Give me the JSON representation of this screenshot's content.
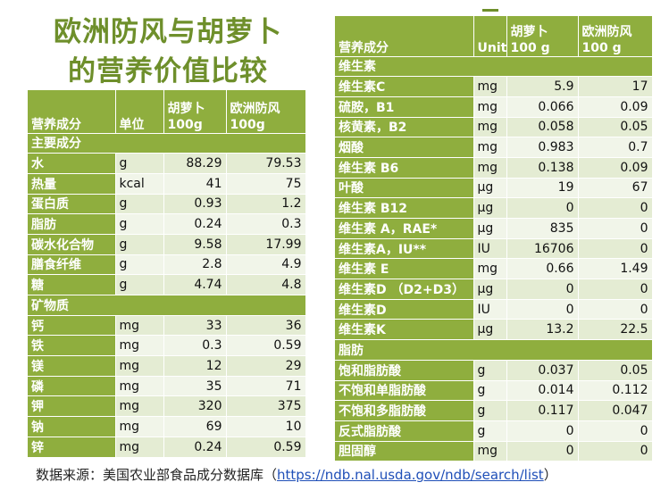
{
  "title_line1": "欧洲防风与胡萝卜",
  "title_line2": "的营养价值比较",
  "left": {
    "headers": [
      "营养成分",
      "单位",
      "胡萝卜\n100g",
      "欧洲防风\n100g"
    ],
    "sections": [
      {
        "label": "主要成分",
        "rows": [
          [
            "水",
            "g",
            "88.29",
            "79.53"
          ],
          [
            "热量",
            "kcal",
            "41",
            "75"
          ],
          [
            "蛋白质",
            "g",
            "0.93",
            "1.2"
          ],
          [
            "脂肪",
            "g",
            "0.24",
            "0.3"
          ],
          [
            "碳水化合物",
            "g",
            "9.58",
            "17.99"
          ],
          [
            "膳食纤维",
            "g",
            "2.8",
            "4.9"
          ],
          [
            "糖",
            "g",
            "4.74",
            "4.8"
          ]
        ]
      },
      {
        "label": "矿物质",
        "rows": [
          [
            "钙",
            "mg",
            "33",
            "36"
          ],
          [
            "铁",
            "mg",
            "0.3",
            "0.59"
          ],
          [
            "镁",
            "mg",
            "12",
            "29"
          ],
          [
            "磷",
            "mg",
            "35",
            "71"
          ],
          [
            "钾",
            "mg",
            "320",
            "375"
          ],
          [
            "钠",
            "mg",
            "69",
            "10"
          ],
          [
            "锌",
            "mg",
            "0.24",
            "0.59"
          ]
        ]
      }
    ]
  },
  "right": {
    "headers": [
      "营养成分",
      "Unit",
      "胡萝卜\n100 g",
      "欧洲防风\n100 g"
    ],
    "sections": [
      {
        "label": "维生素",
        "rows": [
          [
            "维生素C",
            "mg",
            "5.9",
            "17"
          ],
          [
            "硫胺，B1",
            "mg",
            "0.066",
            "0.09"
          ],
          [
            "核黄素，B2",
            "mg",
            "0.058",
            "0.05"
          ],
          [
            "烟酸",
            "mg",
            "0.983",
            "0.7"
          ],
          [
            "维生素 B6",
            "mg",
            "0.138",
            "0.09"
          ],
          [
            "叶酸",
            "µg",
            "19",
            "67"
          ],
          [
            "维生素 B12",
            "µg",
            "0",
            "0"
          ],
          [
            "维生素 A，RAE*",
            "µg",
            "835",
            "0"
          ],
          [
            "维生素A，IU**",
            "IU",
            "16706",
            "0"
          ],
          [
            "维生素 E",
            "mg",
            "0.66",
            "1.49"
          ],
          [
            "维生素D （D2+D3）",
            "µg",
            "0",
            "0"
          ],
          [
            "维生素D",
            "IU",
            "0",
            "0"
          ],
          [
            "维生素K",
            "µg",
            "13.2",
            "22.5"
          ]
        ]
      },
      {
        "label": "脂肪",
        "rows": [
          [
            "饱和脂肪酸",
            "g",
            "0.037",
            "0.05"
          ],
          [
            "不饱和单脂肪酸",
            "g",
            "0.014",
            "0.112"
          ],
          [
            "不饱和多脂肪酸",
            "g",
            "0.117",
            "0.047"
          ],
          [
            "反式脂肪酸",
            "g",
            "0",
            "0"
          ],
          [
            "胆固醇",
            "mg",
            "0",
            "0"
          ]
        ]
      }
    ]
  },
  "source_prefix": "数据来源：美国农业部食品成分数据库（",
  "source_link": "https://ndb.nal.usda.gov/ndb/search/list",
  "source_suffix": "）"
}
